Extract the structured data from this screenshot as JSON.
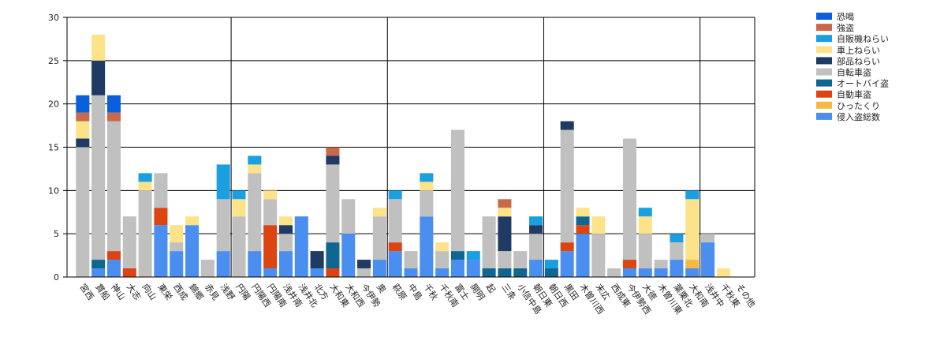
{
  "chart_data": {
    "type": "bar",
    "stacked": true,
    "title": "",
    "xlabel": "",
    "ylabel": "",
    "ylim": [
      0,
      30
    ],
    "yticks": [
      0,
      5,
      10,
      15,
      20,
      25,
      30
    ],
    "grid": true,
    "legend": "top-right",
    "categories": [
      "宮西",
      "貫船",
      "神山",
      "大志",
      "向山",
      "東栄",
      "西成",
      "錦郷",
      "赤見",
      "浅野",
      "円陽",
      "円陽西",
      "円陽南",
      "浅井南",
      "浅井北",
      "北方",
      "大和東",
      "大和西",
      "今伊勢",
      "奥",
      "萩原",
      "中島",
      "千秋",
      "千秋南",
      "富士",
      "開明",
      "起",
      "三条",
      "小信中島",
      "朝日東",
      "朝日西",
      "黒田",
      "木曽川西",
      "末広",
      "西成東",
      "今伊勢西",
      "大徳",
      "木曽川東",
      "葉栗北",
      "大和南",
      "浅井中",
      "千秋東",
      "その他"
    ],
    "series": [
      {
        "name": "侵入盗総数",
        "color": "#4a8ef0",
        "values": [
          0,
          1,
          2,
          0,
          0,
          6,
          3,
          6,
          0,
          3,
          0,
          3,
          1,
          3,
          7,
          1,
          0,
          5,
          0,
          2,
          3,
          1,
          7,
          1,
          2,
          2,
          0,
          0,
          0,
          2,
          0,
          3,
          5,
          0,
          0,
          1,
          1,
          1,
          2,
          1,
          4,
          0,
          0
        ]
      },
      {
        "name": "ひったくり",
        "color": "#f5b942",
        "values": [
          0,
          0,
          0,
          0,
          0,
          0,
          0,
          0,
          0,
          0,
          0,
          0,
          0,
          0,
          0,
          0,
          0,
          0,
          0,
          0,
          0,
          0,
          0,
          0,
          0,
          0,
          0,
          0,
          0,
          0,
          0,
          0,
          0,
          0,
          0,
          0,
          0,
          0,
          0,
          1,
          0,
          0,
          0
        ]
      },
      {
        "name": "自動車盗",
        "color": "#dc4412",
        "values": [
          0,
          0,
          1,
          1,
          0,
          2,
          0,
          0,
          0,
          0,
          0,
          0,
          5,
          0,
          0,
          0,
          1,
          0,
          0,
          0,
          1,
          0,
          0,
          0,
          0,
          0,
          0,
          0,
          0,
          0,
          0,
          1,
          1,
          0,
          0,
          1,
          0,
          0,
          0,
          0,
          0,
          0,
          0
        ]
      },
      {
        "name": "オートバイ盗",
        "color": "#0f6691",
        "values": [
          0,
          1,
          0,
          0,
          0,
          0,
          0,
          0,
          0,
          0,
          0,
          0,
          0,
          0,
          0,
          0,
          3,
          0,
          0,
          0,
          0,
          0,
          0,
          0,
          1,
          0,
          1,
          1,
          1,
          0,
          1,
          0,
          1,
          0,
          0,
          0,
          0,
          0,
          0,
          0,
          0,
          0,
          0
        ]
      },
      {
        "name": "自転車盗",
        "color": "#c0c0c0",
        "values": [
          15,
          19,
          15,
          6,
          10,
          4,
          1,
          0,
          2,
          6,
          7,
          9,
          3,
          2,
          0,
          0,
          9,
          4,
          1,
          5,
          5,
          2,
          3,
          2,
          14,
          0,
          6,
          2,
          2,
          3,
          0,
          13,
          0,
          5,
          1,
          14,
          4,
          1,
          2,
          0,
          1,
          0,
          0
        ]
      },
      {
        "name": "部品ねらい",
        "color": "#1f3a63",
        "values": [
          1,
          4,
          0,
          0,
          0,
          0,
          0,
          0,
          0,
          0,
          0,
          0,
          0,
          1,
          0,
          2,
          1,
          0,
          1,
          0,
          0,
          0,
          0,
          0,
          0,
          0,
          0,
          4,
          0,
          1,
          0,
          1,
          0,
          0,
          0,
          0,
          0,
          0,
          0,
          0,
          0,
          0,
          0
        ]
      },
      {
        "name": "車上ねらい",
        "color": "#fce38a",
        "values": [
          2,
          3,
          0,
          0,
          1,
          0,
          2,
          1,
          0,
          0,
          2,
          1,
          1,
          1,
          0,
          0,
          0,
          0,
          0,
          1,
          0,
          0,
          1,
          1,
          0,
          0,
          0,
          1,
          0,
          0,
          0,
          0,
          1,
          2,
          0,
          0,
          2,
          0,
          0,
          7,
          0,
          1,
          0
        ]
      },
      {
        "name": "自販機ねらい",
        "color": "#1a9fe0",
        "values": [
          0,
          0,
          0,
          0,
          1,
          0,
          0,
          0,
          0,
          4,
          1,
          1,
          0,
          0,
          0,
          0,
          0,
          0,
          0,
          0,
          1,
          0,
          1,
          0,
          0,
          1,
          0,
          0,
          0,
          1,
          1,
          0,
          0,
          0,
          0,
          0,
          1,
          0,
          1,
          1,
          0,
          0,
          0
        ]
      },
      {
        "name": "強盗",
        "color": "#c9694a",
        "values": [
          1,
          0,
          1,
          0,
          0,
          0,
          0,
          0,
          0,
          0,
          0,
          0,
          0,
          0,
          0,
          0,
          1,
          0,
          0,
          0,
          0,
          0,
          0,
          0,
          0,
          0,
          0,
          1,
          0,
          0,
          0,
          0,
          0,
          0,
          0,
          0,
          0,
          0,
          0,
          0,
          0,
          0,
          0
        ]
      },
      {
        "name": "恐喝",
        "color": "#0a5fdc",
        "values": [
          2,
          0,
          2,
          0,
          0,
          0,
          0,
          0,
          0,
          0,
          0,
          0,
          0,
          0,
          0,
          0,
          0,
          0,
          0,
          0,
          0,
          0,
          0,
          0,
          0,
          0,
          0,
          0,
          0,
          0,
          0,
          0,
          0,
          0,
          0,
          0,
          0,
          0,
          0,
          0,
          0,
          0,
          0
        ]
      }
    ]
  }
}
